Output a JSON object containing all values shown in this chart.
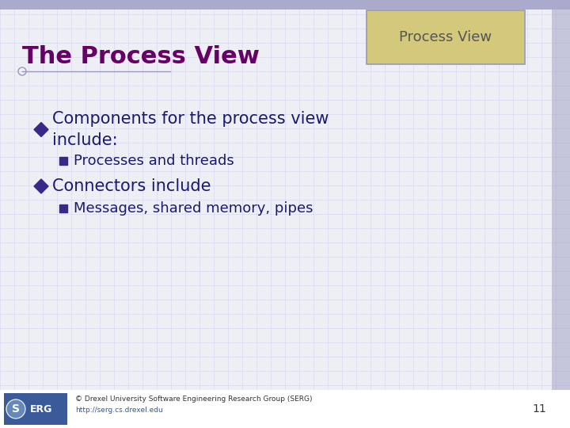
{
  "title": "The Process View",
  "badge_title": "Process View",
  "bg_color": "#eeeef5",
  "grid_color": "#c8cce8",
  "title_color": "#660066",
  "badge_bg": "#d4c87a",
  "badge_border": "#9999bb",
  "badge_text_color": "#555555",
  "content_color": "#1a1a6e",
  "diamond_color": "#3a2888",
  "sub_bullet_color": "#3a2888",
  "footer_bg": "#3a5a9a",
  "footer_text": "© Drexel University Software Engineering Research Group (SERG)",
  "footer_url": "http://serg.cs.drexel.edu",
  "footer_number": "11",
  "bullet1_line1": "Components for the process view",
  "bullet1_line2": "include:",
  "sub_bullet1": "Processes and threads",
  "bullet2": "Connectors include",
  "sub_bullet2": "Messages, shared memory, pipes",
  "top_bar_color": "#aaaacc",
  "right_bar_color": "#aaaacc"
}
